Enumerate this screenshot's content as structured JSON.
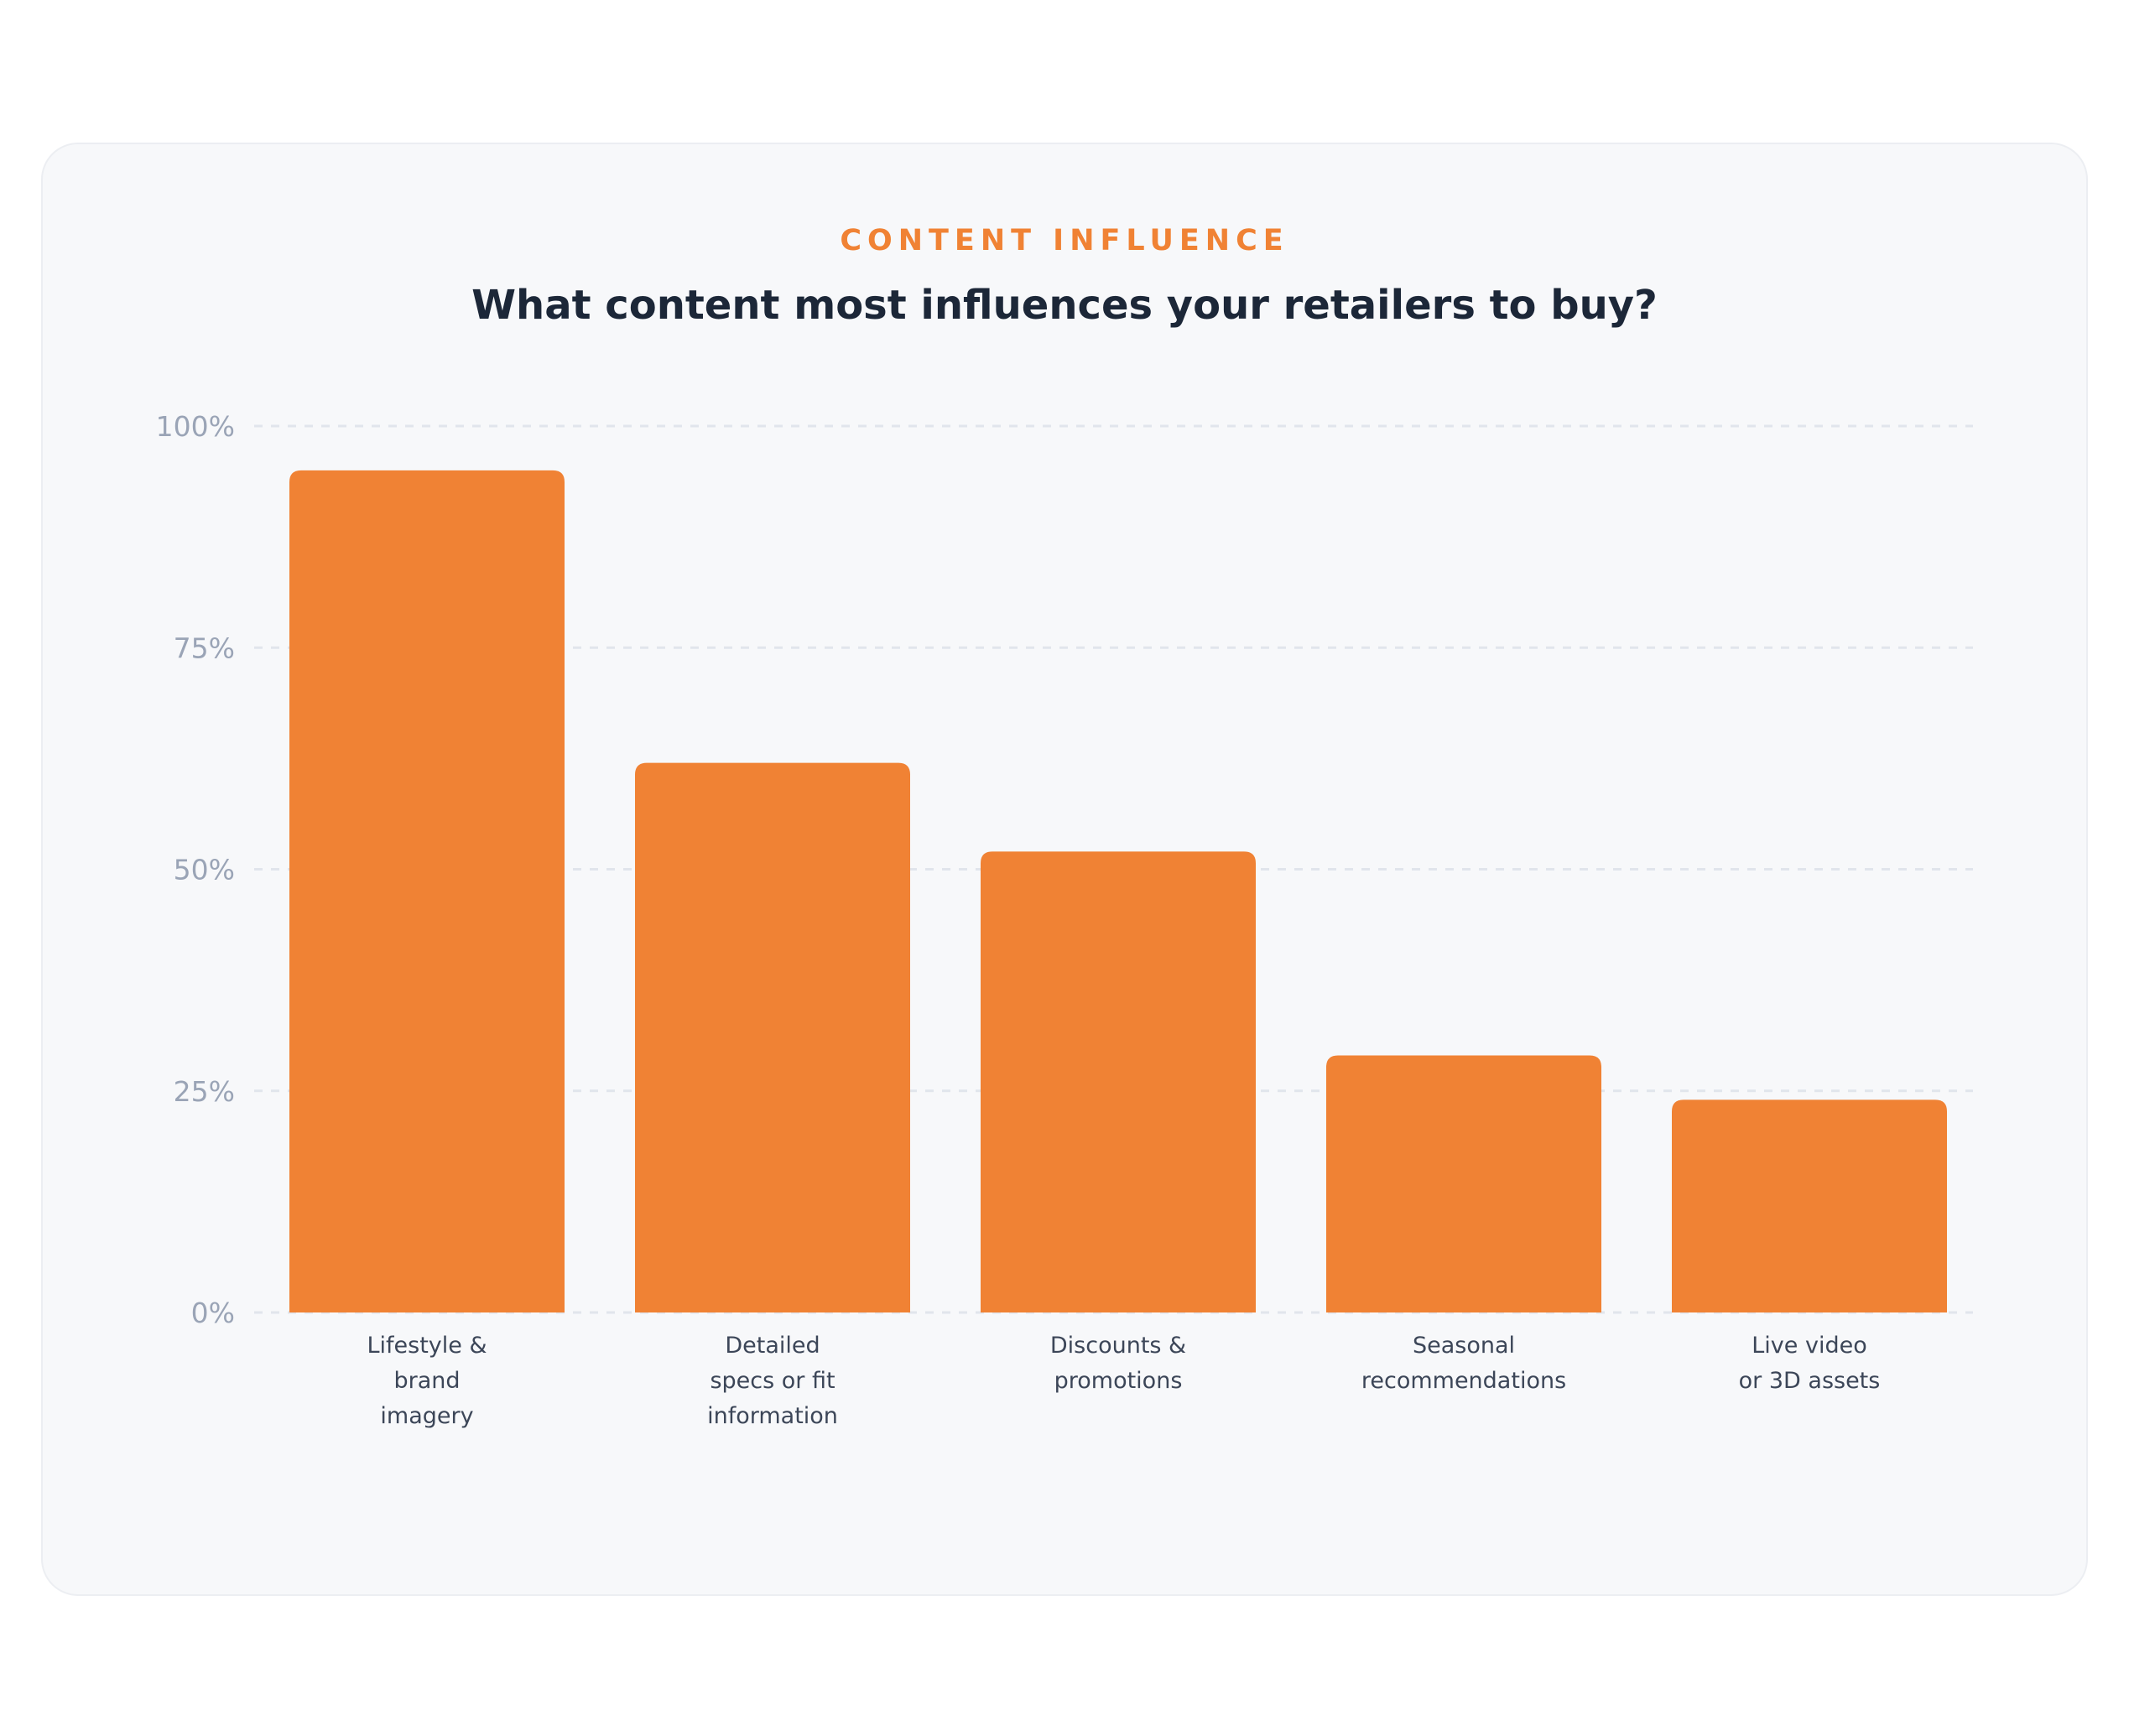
{
  "header": {
    "eyebrow": "CONTENT INFLUENCE",
    "title": "What content most influences your retailers to buy?"
  },
  "colors": {
    "bar": "#f08234",
    "eyebrow": "#f08234",
    "title": "#1c2738",
    "grid": "#e1e5ec",
    "tick": "#9aa4b6",
    "category": "#3c4658",
    "card": "#f7f8fa"
  },
  "chart_data": {
    "type": "bar",
    "title": "What content most influences your retailers to buy?",
    "xlabel": "",
    "ylabel": "",
    "ylim": [
      0,
      100
    ],
    "yticks": [
      0,
      25,
      50,
      75,
      100
    ],
    "ytick_labels": [
      "0%",
      "25%",
      "50%",
      "75%",
      "100%"
    ],
    "grid": true,
    "legend": "none",
    "categories": [
      [
        "Lifestyle &",
        "brand",
        "imagery"
      ],
      [
        "Detailed",
        "specs or fit",
        "information"
      ],
      [
        "Discounts &",
        "promotions"
      ],
      [
        "Seasonal",
        "recommendations"
      ],
      [
        "Live video",
        "or 3D assets"
      ]
    ],
    "values": [
      95,
      62,
      52,
      29,
      24
    ]
  }
}
